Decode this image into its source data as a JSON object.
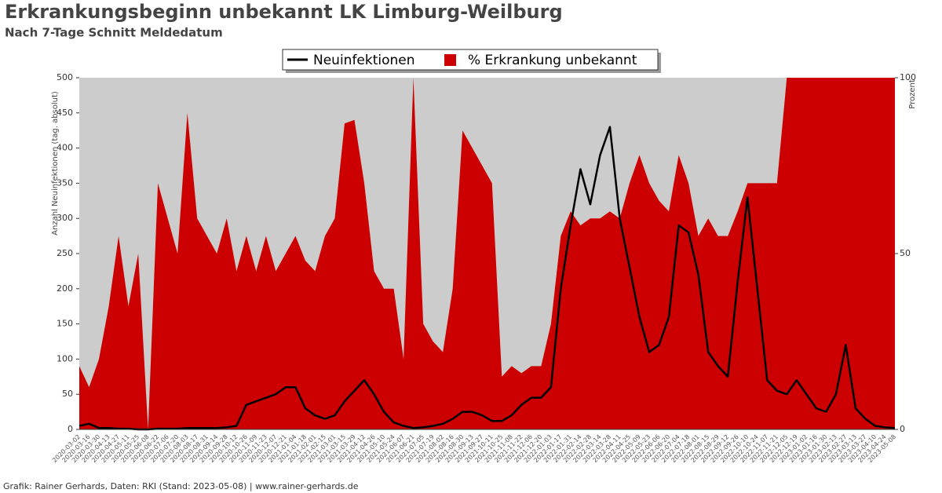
{
  "chart_data": {
    "type": "combo",
    "title": "Erkrankungsbeginn unbekannt LK Limburg-Weilburg",
    "subtitle": "Nach 7-Tage Schnitt Meldedatum",
    "ylabel": "Anzahl Neuinfektionen (tag. absolut)",
    "y2label": "Prozent",
    "footer": "Grafik: Rainer Gerhards, Daten: RKI (Stand: 2023-05-08) | www.rainer-gerhards.de",
    "categories": [
      "2020-03-02",
      "2020-03-16",
      "2020-03-30",
      "2020-04-13",
      "2020-04-27",
      "2020-05-11",
      "2020-05-25",
      "2020-06-08",
      "2020-06-22",
      "2020-07-06",
      "2020-07-20",
      "2020-08-03",
      "2020-08-17",
      "2020-08-31",
      "2020-09-14",
      "2020-09-28",
      "2020-10-12",
      "2020-10-26",
      "2020-11-09",
      "2020-11-23",
      "2020-12-07",
      "2020-12-21",
      "2021-01-04",
      "2021-01-18",
      "2021-02-01",
      "2021-02-15",
      "2021-03-01",
      "2021-03-15",
      "2021-03-29",
      "2021-04-12",
      "2021-04-26",
      "2021-05-10",
      "2021-05-24",
      "2021-06-07",
      "2021-06-21",
      "2021-07-05",
      "2021-07-19",
      "2021-08-02",
      "2021-08-16",
      "2021-08-30",
      "2021-09-13",
      "2021-09-27",
      "2021-10-11",
      "2021-10-25",
      "2021-11-08",
      "2021-11-22",
      "2021-12-06",
      "2021-12-20",
      "2022-01-03",
      "2022-01-17",
      "2022-01-31",
      "2022-02-14",
      "2022-02-28",
      "2022-03-14",
      "2022-03-28",
      "2022-04-11",
      "2022-04-25",
      "2022-05-09",
      "2022-05-23",
      "2022-06-06",
      "2022-06-20",
      "2022-07-04",
      "2022-07-18",
      "2022-08-01",
      "2022-08-15",
      "2022-08-29",
      "2022-09-12",
      "2022-09-26",
      "2022-10-10",
      "2022-10-24",
      "2022-11-07",
      "2022-11-21",
      "2022-12-05",
      "2022-12-19",
      "2023-01-02",
      "2023-01-16",
      "2023-01-30",
      "2023-02-13",
      "2023-02-27",
      "2023-03-13",
      "2023-03-27",
      "2023-04-10",
      "2023-04-24",
      "2023-05-08"
    ],
    "series": [
      {
        "name": "% Erkrankung unbekannt",
        "kind": "area",
        "axis": "y2",
        "color": "#cc0000",
        "values": [
          18,
          12,
          20,
          35,
          55,
          35,
          50,
          0,
          70,
          60,
          50,
          90,
          60,
          55,
          50,
          60,
          45,
          55,
          45,
          55,
          45,
          50,
          55,
          48,
          45,
          55,
          60,
          87,
          88,
          70,
          45,
          40,
          40,
          20,
          100,
          30,
          25,
          22,
          40,
          85,
          80,
          75,
          70,
          15,
          18,
          16,
          18,
          18,
          30,
          55,
          62,
          58,
          60,
          60,
          62,
          60,
          70,
          78,
          70,
          65,
          62,
          78,
          70,
          55,
          60,
          55,
          55,
          62,
          70,
          70,
          70,
          70,
          100,
          100,
          100,
          100,
          100,
          100,
          100,
          100,
          100,
          100,
          100,
          100
        ]
      },
      {
        "name": "Neuinfektionen",
        "kind": "line",
        "axis": "y",
        "color": "#000000",
        "values": [
          5,
          8,
          2,
          2,
          1,
          1,
          0,
          0,
          1,
          1,
          1,
          2,
          2,
          2,
          2,
          3,
          5,
          35,
          40,
          45,
          50,
          60,
          60,
          30,
          20,
          15,
          20,
          40,
          55,
          70,
          50,
          25,
          10,
          5,
          2,
          3,
          5,
          8,
          15,
          25,
          25,
          20,
          12,
          12,
          20,
          35,
          45,
          45,
          60,
          200,
          290,
          370,
          320,
          390,
          430,
          300,
          230,
          160,
          110,
          120,
          160,
          290,
          280,
          220,
          110,
          90,
          75,
          210,
          330,
          200,
          70,
          55,
          50,
          70,
          50,
          30,
          25,
          50,
          120,
          30,
          15,
          5,
          3,
          2
        ]
      }
    ],
    "ylim": [
      0,
      500
    ],
    "yticks": [
      0,
      50,
      100,
      150,
      200,
      250,
      300,
      350,
      400,
      450,
      500
    ],
    "y2lim": [
      0,
      100
    ],
    "y2ticks": [
      0,
      50,
      100
    ],
    "legend": "top"
  }
}
